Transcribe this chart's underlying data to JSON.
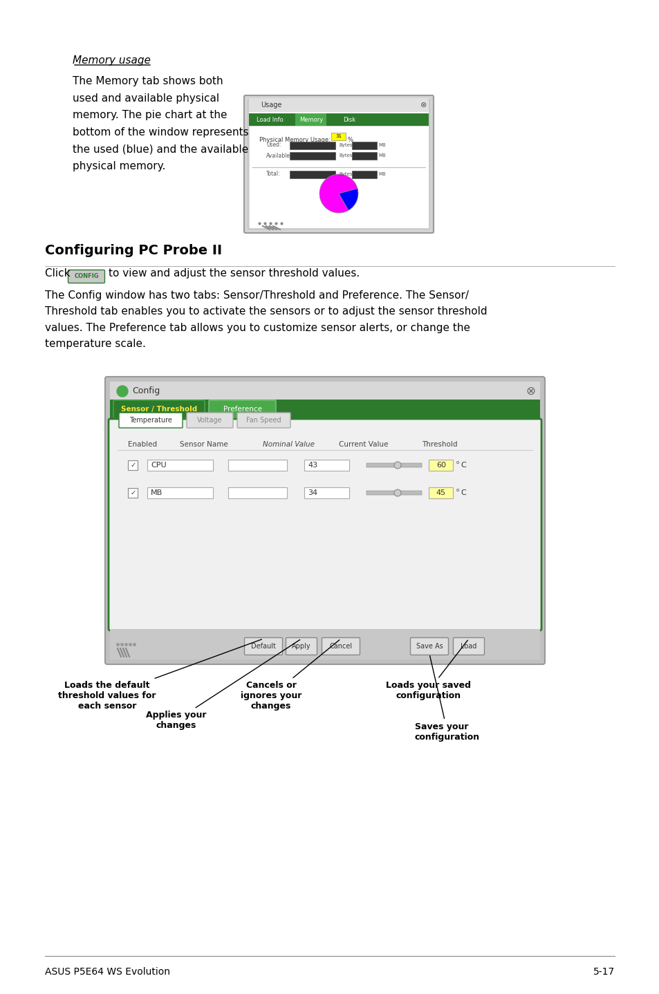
{
  "page_bg": "#ffffff",
  "text_color": "#000000",
  "title_section": "Configuring PC Probe II",
  "memory_usage_title": "Memory usage",
  "memory_usage_text": "The Memory tab shows both\nused and available physical\nmemory. The pie chart at the\nbottom of the window represents\nthe used (blue) and the available\nphysical memory.",
  "config_intro1": "Click ",
  "config_intro2": " to view and adjust the sensor threshold values.",
  "config_body": "The Config window has two tabs: Sensor/Threshold and Preference. The Sensor/\nThreshold tab enables you to activate the sensors or to adjust the sensor threshold\nvalues. The Preference tab allows you to customize sensor alerts, or change the\ntemperature scale.",
  "footer_left": "ASUS P5E64 WS Evolution",
  "footer_right": "5-17",
  "annotation1_label": "Loads the default\nthreshold values for\neach sensor",
  "annotation2_label": "Applies your\nchanges",
  "annotation3_label": "Cancels or\nignores your\nchanges",
  "annotation4_label": "Loads your saved\nconfiguration",
  "annotation5_label": "Saves your\nconfiguration",
  "green_dark": "#2d7a2d",
  "green_mid": "#4aaa4a",
  "green_light": "#7ec87e",
  "gray_bg": "#c8c8c8",
  "gray_dark": "#888888",
  "tab_active_color": "#f5e642",
  "tab_inactive_color": "#4aaa4a",
  "window_bg": "#e8e8e8"
}
